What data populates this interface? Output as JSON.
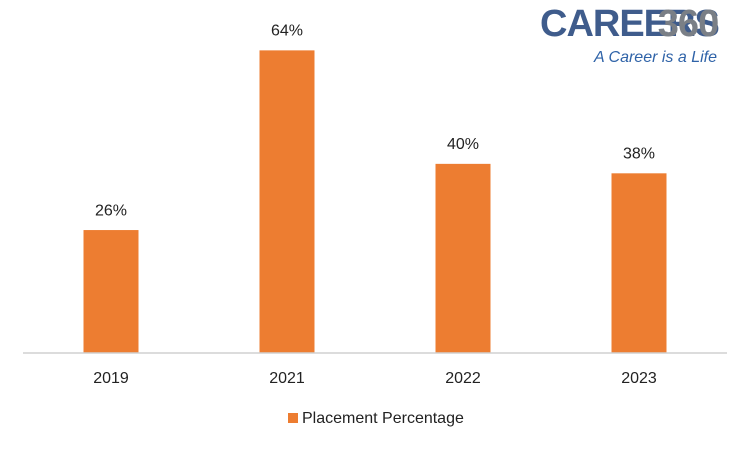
{
  "logo": {
    "brand": "CAREERS",
    "number": "360",
    "tagline": "A Career is a Life"
  },
  "chart_data": {
    "type": "bar",
    "categories": [
      "2019",
      "2021",
      "2022",
      "2023"
    ],
    "series": [
      {
        "name": "Placement Percentage",
        "color": "#ed7d31",
        "values": [
          26,
          64,
          40,
          38
        ],
        "value_labels": [
          "26%",
          "64%",
          "40%",
          "38%"
        ]
      }
    ],
    "ylim": [
      0,
      70
    ],
    "legend": "bottom"
  }
}
